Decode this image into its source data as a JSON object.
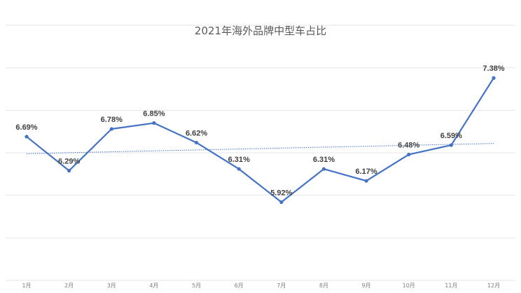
{
  "chart_data": {
    "type": "line",
    "title": "2021年海外品牌中型车占比",
    "xlabel": "",
    "ylabel": "",
    "categories": [
      "1月",
      "2月",
      "3月",
      "4月",
      "5月",
      "6月",
      "7月",
      "8月",
      "9月",
      "10月",
      "11月",
      "12月"
    ],
    "series": [
      {
        "name": "海外品牌中型车占比",
        "values": [
          6.69,
          6.29,
          6.78,
          6.85,
          6.62,
          6.31,
          5.92,
          6.31,
          6.17,
          6.48,
          6.59,
          7.38
        ],
        "labels": [
          "6.69%",
          "6.29%",
          "6.78%",
          "6.85%",
          "6.62%",
          "6.31%",
          "5.92%",
          "6.31%",
          "6.17%",
          "6.48%",
          "6.59%",
          "7.38%"
        ],
        "color": "#4472C4"
      }
    ],
    "trendline": {
      "type": "linear",
      "style": "dotted",
      "color": "#4472C4",
      "start": 6.49,
      "end": 6.61
    },
    "ylim": [
      5.0,
      8.0
    ],
    "ytick_step": 0.5,
    "y_axis_labels_visible": false,
    "grid": true,
    "legend": "none"
  }
}
